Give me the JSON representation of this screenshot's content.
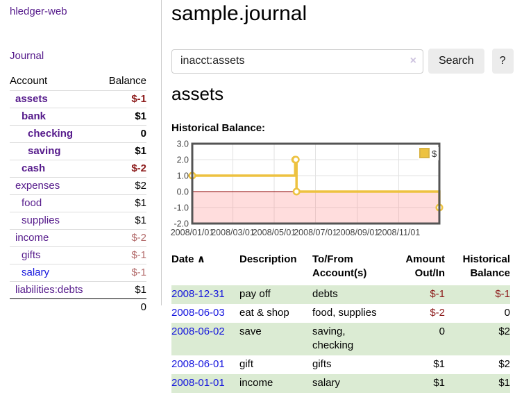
{
  "colors": {
    "link_purple": "#551A8B",
    "link_blue": "#1414DD",
    "negative": "#8C1A1A",
    "negative_muted": "#B36B6B",
    "row_shade_green": "#DBEBD3",
    "chart_line": "#EDC240",
    "chart_negative_fill": "#F9DADA",
    "chart_zero_line": "#8B0000",
    "chart_border": "#545454"
  },
  "sidebar": {
    "brand": "hledger-web",
    "journal_link": "Journal",
    "accounts": {
      "col_account": "Account",
      "col_balance": "Balance",
      "rows": [
        {
          "name": "assets",
          "indent": 1,
          "bold": true,
          "link_color": "purple",
          "balance": "$-1",
          "negative": "strong"
        },
        {
          "name": "bank",
          "indent": 2,
          "bold": true,
          "link_color": "purple",
          "balance": "$1",
          "negative": "none"
        },
        {
          "name": "checking",
          "indent": 3,
          "bold": true,
          "link_color": "purple",
          "balance": "0",
          "negative": "none"
        },
        {
          "name": "saving",
          "indent": 3,
          "bold": true,
          "link_color": "purple",
          "balance": "$1",
          "negative": "none"
        },
        {
          "name": "cash",
          "indent": 2,
          "bold": true,
          "link_color": "purple",
          "balance": "$-2",
          "negative": "strong"
        },
        {
          "name": "expenses",
          "indent": 1,
          "bold": false,
          "link_color": "purple",
          "balance": "$2",
          "negative": "none"
        },
        {
          "name": "food",
          "indent": 2,
          "bold": false,
          "link_color": "purple",
          "balance": "$1",
          "negative": "none"
        },
        {
          "name": "supplies",
          "indent": 2,
          "bold": false,
          "link_color": "purple",
          "balance": "$1",
          "negative": "none"
        },
        {
          "name": "income",
          "indent": 1,
          "bold": false,
          "link_color": "purple",
          "balance": "$-2",
          "negative": "muted"
        },
        {
          "name": "gifts",
          "indent": 2,
          "bold": false,
          "link_color": "purple",
          "balance": "$-1",
          "negative": "muted"
        },
        {
          "name": "salary",
          "indent": 2,
          "bold": false,
          "link_color": "blue",
          "balance": "$-1",
          "negative": "muted"
        },
        {
          "name": "liabilities:debts",
          "indent": 1,
          "bold": false,
          "link_color": "purple",
          "balance": "$1",
          "negative": "none"
        }
      ],
      "total": "0"
    }
  },
  "header": {
    "title": "sample.journal"
  },
  "search": {
    "value": "inacct:assets",
    "clear_icon": "×",
    "search_button": "Search",
    "help_button": "?"
  },
  "account_view": {
    "heading": "assets",
    "chart_label": "Historical Balance:"
  },
  "chart_data": {
    "type": "line",
    "title": "Historical Balance",
    "step": true,
    "x_start_date": "2008-01-01",
    "x_range_days": [
      0,
      365
    ],
    "ylim": [
      -2,
      3
    ],
    "y_ticks": [
      3,
      2,
      1,
      0,
      -1,
      -2
    ],
    "x_ticks": [
      {
        "label": "2008/01/01",
        "day": 0
      },
      {
        "label": "2008/03/01",
        "day": 60
      },
      {
        "label": "2008/05/01",
        "day": 121
      },
      {
        "label": "2008/07/01",
        "day": 182
      },
      {
        "label": "2008/09/01",
        "day": 244
      },
      {
        "label": "2008/11/01",
        "day": 305
      }
    ],
    "series": [
      {
        "name": "$",
        "points": [
          [
            "2008-01-01",
            1
          ],
          [
            "2008-06-01",
            2
          ],
          [
            "2008-06-02",
            2
          ],
          [
            "2008-06-03",
            0
          ],
          [
            "2008-12-31",
            -1
          ]
        ]
      }
    ],
    "legend": {
      "label": "$",
      "position": "top-right"
    },
    "grid": true,
    "negative_region_shaded": true
  },
  "transactions": {
    "columns": {
      "date": "Date",
      "sort_indicator": "∧",
      "description": "Description",
      "tofrom": "To/From Account(s)",
      "amount": "Amount Out/In",
      "balance": "Historical Balance"
    },
    "rows": [
      {
        "date": "2008-12-31",
        "description": "pay off",
        "tofrom": "debts",
        "amount": "$-1",
        "amount_negative": true,
        "balance": "$-1",
        "balance_negative": true
      },
      {
        "date": "2008-06-03",
        "description": "eat & shop",
        "tofrom": "food, supplies",
        "amount": "$-2",
        "amount_negative": true,
        "balance": "0",
        "balance_negative": false
      },
      {
        "date": "2008-06-02",
        "description": "save",
        "tofrom": "saving, checking",
        "amount": "0",
        "amount_negative": false,
        "balance": "$2",
        "balance_negative": false
      },
      {
        "date": "2008-06-01",
        "description": "gift",
        "tofrom": "gifts",
        "amount": "$1",
        "amount_negative": false,
        "balance": "$2",
        "balance_negative": false
      },
      {
        "date": "2008-01-01",
        "description": "income",
        "tofrom": "salary",
        "amount": "$1",
        "amount_negative": false,
        "balance": "$1",
        "balance_negative": false
      }
    ]
  }
}
